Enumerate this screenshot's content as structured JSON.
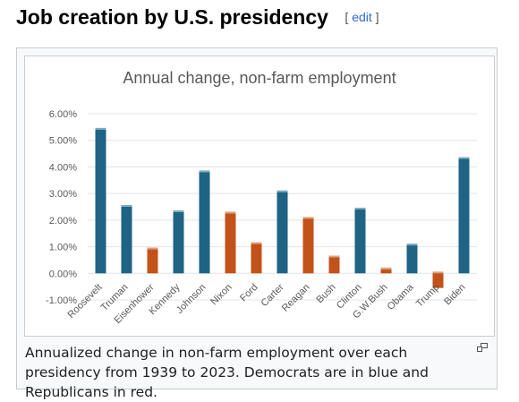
{
  "section": {
    "title": "Job creation by U.S. presidency",
    "edit_open": "[ ",
    "edit_label": "edit",
    "edit_close": " ]"
  },
  "caption": "Annualized change in non-farm employment over each presidency from 1939 to 2023. Democrats are in blue and Republicans in red.",
  "colors": {
    "democrat": "#1f6385",
    "republican": "#c2521a"
  },
  "chart_data": {
    "type": "bar",
    "title": "Annual change, non-farm employment",
    "xlabel": "",
    "ylabel": "",
    "ylim": [
      -1,
      6
    ],
    "yticks": [
      "-1.00%",
      "0.00%",
      "1.00%",
      "2.00%",
      "3.00%",
      "4.00%",
      "5.00%",
      "6.00%"
    ],
    "grid": true,
    "categories": [
      "Roosevelt",
      "Truman",
      "Eisenhower",
      "Kennedy",
      "Johnson",
      "Nixon",
      "Ford",
      "Carter",
      "Reagan",
      "Bush",
      "Clinton",
      "G.W.Bush",
      "Obama",
      "Trump",
      "Biden"
    ],
    "values": [
      5.4,
      2.5,
      0.9,
      2.3,
      3.8,
      2.25,
      1.1,
      3.05,
      2.05,
      0.6,
      2.4,
      0.15,
      1.05,
      -0.55,
      4.3
    ],
    "party": [
      "democrat",
      "democrat",
      "republican",
      "democrat",
      "democrat",
      "republican",
      "republican",
      "democrat",
      "republican",
      "republican",
      "democrat",
      "republican",
      "democrat",
      "republican",
      "democrat"
    ]
  }
}
